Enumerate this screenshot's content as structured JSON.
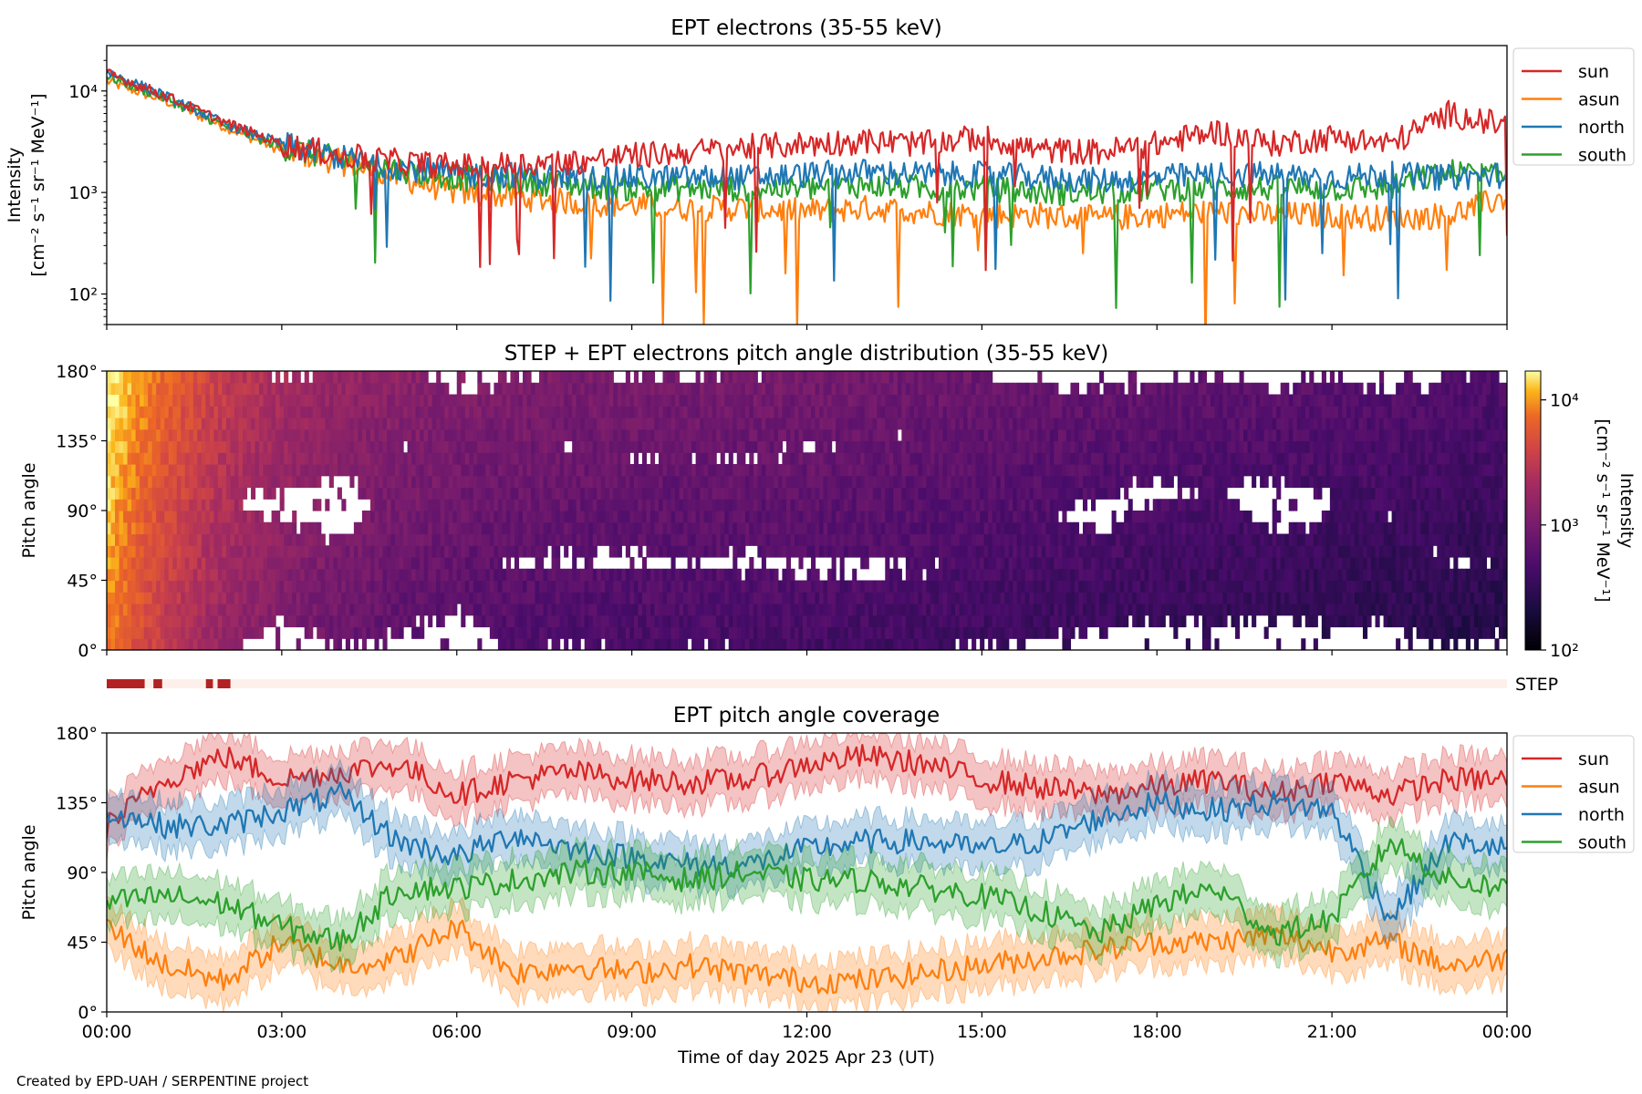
{
  "footer": "Created by EPD-UAH / SERPENTINE project",
  "xaxis": {
    "label": "Time of day 2025 Apr 23 (UT)",
    "ticks": [
      "00:00",
      "03:00",
      "06:00",
      "09:00",
      "12:00",
      "15:00",
      "18:00",
      "21:00",
      "00:00"
    ],
    "range_hours": [
      0,
      24
    ]
  },
  "legend_labels": [
    "sun",
    "asun",
    "north",
    "south"
  ],
  "colors": {
    "sun": "#d62728",
    "asun": "#ff7f0e",
    "north": "#1f77b4",
    "south": "#2ca02c",
    "step_bar": "#b22222",
    "step_bg": "#fdf0ea"
  },
  "chart_data": [
    {
      "type": "line",
      "title": "EPT electrons (35-55 keV)",
      "ylabel_lines": [
        "Intensity",
        "[cm⁻² s⁻¹ sr⁻¹ MeV⁻¹]"
      ],
      "yscale": "log",
      "ylim": [
        50,
        28000
      ],
      "yticks": [
        {
          "value": 10000,
          "label": "10⁴"
        },
        {
          "value": 1000,
          "label": "10³"
        },
        {
          "value": 100,
          "label": "10²"
        }
      ],
      "x_hours": [
        0,
        1,
        2,
        3,
        4,
        5,
        6,
        7,
        8,
        9,
        10,
        11,
        12,
        13,
        14,
        15,
        16,
        17,
        18,
        19,
        20,
        21,
        22,
        23,
        24
      ],
      "series": [
        {
          "name": "sun",
          "values": [
            15000,
            9000,
            5000,
            3000,
            2300,
            2000,
            1800,
            1900,
            2000,
            2300,
            2500,
            2800,
            3000,
            3200,
            3000,
            3500,
            2600,
            2500,
            3000,
            4000,
            3000,
            3500,
            3000,
            6000,
            4500
          ]
        },
        {
          "name": "asun",
          "values": [
            12500,
            8000,
            4500,
            2600,
            2000,
            1400,
            1000,
            900,
            800,
            750,
            700,
            700,
            650,
            700,
            650,
            600,
            600,
            550,
            600,
            650,
            600,
            600,
            550,
            600,
            900
          ]
        },
        {
          "name": "north",
          "values": [
            15500,
            9000,
            4800,
            3000,
            2200,
            1800,
            1500,
            1500,
            1400,
            1400,
            1400,
            1400,
            1500,
            1600,
            1500,
            1500,
            1400,
            1300,
            1400,
            1500,
            1500,
            1400,
            1500,
            1400,
            1500
          ]
        },
        {
          "name": "south",
          "values": [
            14000,
            8500,
            4600,
            2800,
            2100,
            1700,
            1400,
            1300,
            1200,
            1100,
            1100,
            1100,
            1100,
            1200,
            1100,
            1100,
            1000,
            1000,
            1100,
            1100,
            1100,
            1100,
            1100,
            1600,
            1400
          ]
        }
      ],
      "legend": "outside-right"
    },
    {
      "type": "heatmap",
      "title": "STEP + EPT electrons pitch angle distribution (35-55 keV)",
      "ylabel": "Pitch angle",
      "ylim": [
        0,
        180
      ],
      "yticks": [
        "0°",
        "45°",
        "90°",
        "135°",
        "180°"
      ],
      "colorbar": {
        "label_lines": [
          "Intensity",
          "[cm⁻² s⁻¹ sr⁻¹ MeV⁻¹]"
        ],
        "range": [
          100,
          17000
        ],
        "ticks": [
          {
            "value": 100,
            "label": "10²"
          },
          {
            "value": 1000,
            "label": "10³"
          },
          {
            "value": 10000,
            "label": "10⁴"
          }
        ],
        "colormap": "inferno-like"
      },
      "step_label": "STEP",
      "step_coverage_hours": [
        [
          0,
          0.65
        ],
        [
          0.8,
          0.95
        ],
        [
          1.7,
          1.82
        ],
        [
          1.9,
          2.12
        ]
      ]
    },
    {
      "type": "line",
      "title": "EPT pitch angle coverage",
      "ylabel": "Pitch angle",
      "ylim": [
        0,
        180
      ],
      "yticks": [
        "0°",
        "45°",
        "90°",
        "135°",
        "180°"
      ],
      "x_hours": [
        0,
        1,
        2,
        3,
        4,
        5,
        6,
        7,
        8,
        9,
        10,
        11,
        12,
        13,
        14,
        15,
        16,
        17,
        18,
        19,
        20,
        21,
        22,
        23,
        24
      ],
      "band_halfwidth_deg": 15,
      "series": [
        {
          "name": "sun",
          "values": [
            120,
            150,
            165,
            150,
            155,
            160,
            140,
            150,
            155,
            150,
            148,
            150,
            160,
            165,
            160,
            150,
            145,
            140,
            145,
            150,
            140,
            150,
            140,
            150,
            150
          ]
        },
        {
          "name": "asun",
          "values": [
            55,
            30,
            20,
            45,
            30,
            35,
            55,
            25,
            30,
            25,
            30,
            25,
            20,
            20,
            25,
            30,
            35,
            40,
            45,
            45,
            50,
            40,
            45,
            30,
            35
          ]
        },
        {
          "name": "north",
          "values": [
            130,
            120,
            120,
            130,
            140,
            110,
            100,
            115,
            105,
            100,
            95,
            95,
            105,
            110,
            110,
            105,
            110,
            125,
            135,
            130,
            135,
            130,
            60,
            110,
            105
          ]
        },
        {
          "name": "south",
          "values": [
            70,
            75,
            70,
            55,
            45,
            80,
            80,
            85,
            90,
            90,
            85,
            90,
            85,
            85,
            80,
            75,
            65,
            50,
            70,
            80,
            50,
            60,
            110,
            85,
            80
          ]
        }
      ],
      "legend": "outside-right"
    }
  ]
}
